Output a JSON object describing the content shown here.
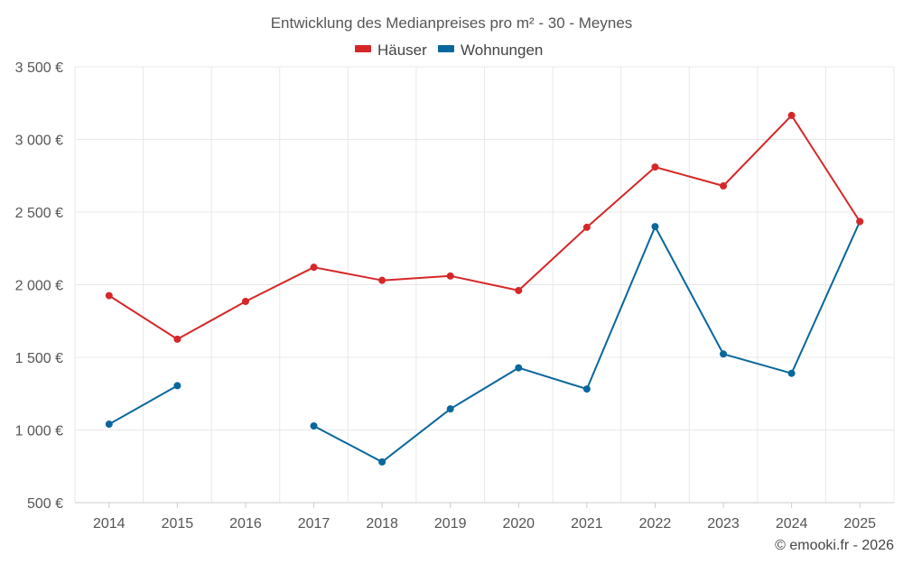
{
  "chart_data": {
    "type": "line",
    "title": "Entwicklung des Medianpreises pro m² - 30 - Meynes",
    "xlabel": "",
    "ylabel": "",
    "x": [
      2014,
      2015,
      2016,
      2017,
      2018,
      2019,
      2020,
      2021,
      2022,
      2023,
      2024,
      2025
    ],
    "ylim": [
      500,
      3500
    ],
    "yticks": [
      500,
      1000,
      1500,
      2000,
      2500,
      3000,
      3500
    ],
    "ytick_labels": [
      "500 €",
      "1 000 €",
      "1 500 €",
      "2 000 €",
      "2 500 €",
      "3 000 €",
      "3 500 €"
    ],
    "legend_position": "top-center",
    "grid": true,
    "series": [
      {
        "name": "Häuser",
        "color": "#d62728",
        "values": [
          1925,
          1625,
          1885,
          2120,
          2030,
          2060,
          1960,
          2395,
          2810,
          2680,
          3165,
          2435
        ]
      },
      {
        "name": "Wohnungen",
        "color": "#08679c",
        "values": [
          1040,
          1305,
          null,
          1028,
          780,
          1145,
          1428,
          1282,
          2400,
          1523,
          1390,
          2435
        ]
      }
    ]
  },
  "credit": "© emooki.fr - 2026"
}
